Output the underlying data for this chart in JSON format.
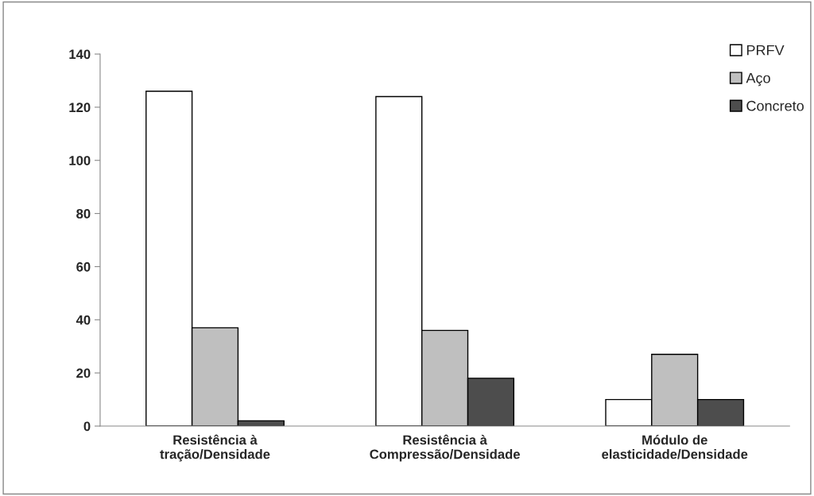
{
  "chart_data": {
    "type": "bar",
    "categories": [
      "Resistência à\ntração/Densidade",
      "Resistência à\nCompressão/Densidade",
      "Módulo de\nelasticidade/Densidade"
    ],
    "series": [
      {
        "name": "PRFV",
        "color": "#ffffff",
        "values": [
          126,
          124,
          10
        ]
      },
      {
        "name": "Aço",
        "color": "#bfbfbf",
        "values": [
          37,
          36,
          27
        ]
      },
      {
        "name": "Concreto",
        "color": "#4d4d4d",
        "values": [
          2,
          18,
          10
        ]
      }
    ],
    "ylim": [
      0,
      140
    ],
    "yticks": [
      0,
      20,
      40,
      60,
      80,
      100,
      120,
      140
    ],
    "grid": false,
    "legend": "top right"
  }
}
